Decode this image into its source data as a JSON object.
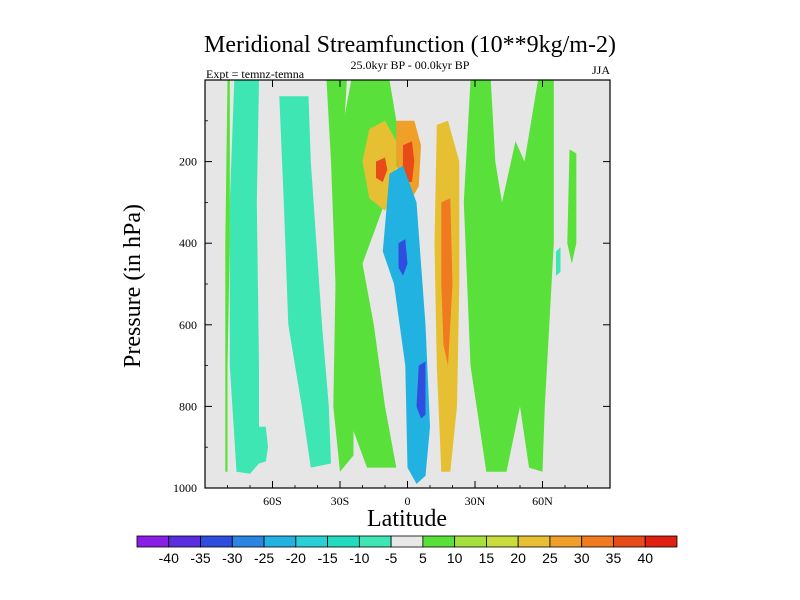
{
  "chart_data": {
    "type": "contour",
    "title": "Meridional Streamfunction (10**9kg/m-2)",
    "subtitle": "25.0kyr BP - 00.0kyr BP",
    "left_note": "Expt = temnz-temna",
    "season": "JJA",
    "xlabel": "Latitude",
    "ylabel": "Pressure (in hPa)",
    "xlim": [
      -90,
      90
    ],
    "ylim": [
      1000,
      0
    ],
    "x_ticks": [
      {
        "value": -60,
        "label": "60S"
      },
      {
        "value": -30,
        "label": "30S"
      },
      {
        "value": 0,
        "label": "0"
      },
      {
        "value": 30,
        "label": "30N"
      },
      {
        "value": 60,
        "label": "60N"
      }
    ],
    "y_ticks": [
      {
        "value": 200,
        "label": "200"
      },
      {
        "value": 400,
        "label": "400"
      },
      {
        "value": 600,
        "label": "600"
      },
      {
        "value": 800,
        "label": "800"
      },
      {
        "value": 1000,
        "label": "1000"
      }
    ],
    "background_color": "#e6e6e6",
    "colorbar": {
      "labels": [
        "-40",
        "-35",
        "-30",
        "-25",
        "-20",
        "-15",
        "-10",
        "-5",
        "5",
        "10",
        "15",
        "20",
        "25",
        "30",
        "35",
        "40"
      ],
      "colors": [
        "#8a1ee6",
        "#5a2ee0",
        "#2f4ee0",
        "#2a86e0",
        "#22b2e2",
        "#29cfd6",
        "#22dcc0",
        "#3ee6b4",
        "#e8e8e8",
        "#5ae03a",
        "#a6e03c",
        "#c8dc3c",
        "#e6c032",
        "#f0a028",
        "#f07a20",
        "#e84a18",
        "#e02010"
      ]
    },
    "regions": [
      {
        "name": "sh-polar-cell",
        "value": -22,
        "points": [
          [
            -73,
            0
          ],
          [
            -70,
            0
          ],
          [
            -69,
            300
          ],
          [
            -70,
            700
          ],
          [
            -70,
            930
          ],
          [
            -72,
            955
          ],
          [
            -75,
            930
          ],
          [
            -76,
            500
          ],
          [
            -75,
            200
          ]
        ]
      },
      {
        "name": "sh-polar-cell-outer",
        "value": -7,
        "points": [
          [
            -77,
            0
          ],
          [
            -66,
            0
          ],
          [
            -67,
            300
          ],
          [
            -66,
            700
          ],
          [
            -66,
            940
          ],
          [
            -70,
            965
          ],
          [
            -76,
            960
          ],
          [
            -79,
            700
          ],
          [
            -79,
            300
          ]
        ]
      },
      {
        "name": "sh-midlat-positive",
        "value": 7,
        "points": [
          [
            -80,
            0
          ],
          [
            -79,
            0
          ],
          [
            -79,
            400
          ],
          [
            -80,
            700
          ],
          [
            -80,
            960
          ],
          [
            -81,
            960
          ],
          [
            -81,
            400
          ]
        ]
      },
      {
        "name": "sh-small-blob",
        "value": -7,
        "points": [
          [
            -66,
            850
          ],
          [
            -63,
            850
          ],
          [
            -62,
            900
          ],
          [
            -63,
            935
          ],
          [
            -66,
            940
          ],
          [
            -67,
            900
          ]
        ]
      },
      {
        "name": "sh-broad-negative",
        "value": -7,
        "points": [
          [
            -57,
            40
          ],
          [
            -44,
            40
          ],
          [
            -43,
            200
          ],
          [
            -38,
            600
          ],
          [
            -35,
            800
          ],
          [
            -34,
            940
          ],
          [
            -43,
            950
          ],
          [
            -47,
            800
          ],
          [
            -53,
            600
          ],
          [
            -55,
            300
          ]
        ]
      },
      {
        "name": "sh-right-positive",
        "value": 7,
        "points": [
          [
            -36,
            0
          ],
          [
            -27,
            0
          ],
          [
            -29,
            200
          ],
          [
            -26,
            400
          ],
          [
            -24,
            700
          ],
          [
            -24,
            920
          ],
          [
            -30,
            960
          ],
          [
            -33,
            800
          ],
          [
            -32,
            500
          ],
          [
            -34,
            200
          ]
        ]
      },
      {
        "name": "tropical-positive-band",
        "value": 7,
        "points": [
          [
            -25,
            0
          ],
          [
            -8,
            0
          ],
          [
            -5,
            100
          ],
          [
            -4,
            200
          ],
          [
            -10,
            300
          ],
          [
            -20,
            450
          ],
          [
            -15,
            600
          ],
          [
            -10,
            800
          ],
          [
            -5,
            950
          ],
          [
            -18,
            950
          ],
          [
            -28,
            800
          ],
          [
            -28,
            400
          ],
          [
            -30,
            150
          ]
        ]
      },
      {
        "name": "upper-high-core-left",
        "value": 22,
        "points": [
          [
            -17,
            120
          ],
          [
            -10,
            100
          ],
          [
            -5,
            150
          ],
          [
            -5,
            280
          ],
          [
            -10,
            320
          ],
          [
            -17,
            290
          ],
          [
            -20,
            200
          ]
        ]
      },
      {
        "name": "upper-high-core-left-peak",
        "value": 37,
        "points": [
          [
            -14,
            200
          ],
          [
            -10,
            190
          ],
          [
            -9,
            220
          ],
          [
            -11,
            250
          ],
          [
            -14,
            240
          ]
        ]
      },
      {
        "name": "upper-high-core-right",
        "value": 27,
        "points": [
          [
            -5,
            100
          ],
          [
            3,
            100
          ],
          [
            6,
            160
          ],
          [
            5,
            260
          ],
          [
            1,
            300
          ],
          [
            -4,
            280
          ],
          [
            -5,
            180
          ]
        ]
      },
      {
        "name": "upper-high-core-right-peak",
        "value": 37,
        "points": [
          [
            -2,
            160
          ],
          [
            2,
            150
          ],
          [
            3,
            200
          ],
          [
            2,
            250
          ],
          [
            -2,
            250
          ]
        ]
      },
      {
        "name": "equatorial-negative",
        "value": -22,
        "points": [
          [
            -8,
            230
          ],
          [
            -2,
            210
          ],
          [
            4,
            300
          ],
          [
            8,
            600
          ],
          [
            10,
            850
          ],
          [
            8,
            970
          ],
          [
            4,
            990
          ],
          [
            0,
            950
          ],
          [
            -1,
            700
          ],
          [
            -6,
            500
          ],
          [
            -11,
            420
          ]
        ]
      },
      {
        "name": "equatorial-negative-core",
        "value": -32,
        "points": [
          [
            -4,
            400
          ],
          [
            -1,
            390
          ],
          [
            0,
            450
          ],
          [
            -2,
            480
          ],
          [
            -4,
            460
          ]
        ]
      },
      {
        "name": "equatorial-negative-lower",
        "value": -32,
        "points": [
          [
            5,
            700
          ],
          [
            8,
            690
          ],
          [
            8,
            820
          ],
          [
            6,
            830
          ],
          [
            4,
            800
          ]
        ]
      },
      {
        "name": "nh-hadley-positive",
        "value": 22,
        "points": [
          [
            13,
            110
          ],
          [
            18,
            100
          ],
          [
            23,
            200
          ],
          [
            23,
            500
          ],
          [
            22,
            800
          ],
          [
            19,
            960
          ],
          [
            15,
            960
          ],
          [
            13,
            700
          ],
          [
            12,
            400
          ]
        ]
      },
      {
        "name": "nh-hadley-core",
        "value": 32,
        "points": [
          [
            15,
            300
          ],
          [
            19,
            290
          ],
          [
            20,
            500
          ],
          [
            18,
            700
          ],
          [
            16,
            650
          ],
          [
            15,
            500
          ]
        ]
      },
      {
        "name": "nh-midlat-positive",
        "value": 7,
        "points": [
          [
            28,
            0
          ],
          [
            37,
            0
          ],
          [
            39,
            200
          ],
          [
            42,
            300
          ],
          [
            48,
            150
          ],
          [
            52,
            200
          ],
          [
            58,
            0
          ],
          [
            65,
            0
          ],
          [
            65,
            400
          ],
          [
            61,
            800
          ],
          [
            60,
            960
          ],
          [
            54,
            950
          ],
          [
            50,
            800
          ],
          [
            44,
            960
          ],
          [
            35,
            960
          ],
          [
            28,
            700
          ],
          [
            25,
            300
          ]
        ]
      },
      {
        "name": "nh-polar-positive",
        "value": 7,
        "points": [
          [
            72,
            170
          ],
          [
            75,
            180
          ],
          [
            75,
            400
          ],
          [
            73,
            450
          ],
          [
            71,
            400
          ]
        ]
      },
      {
        "name": "nh-small-negative",
        "value": -7,
        "points": [
          [
            66,
            420
          ],
          [
            68,
            410
          ],
          [
            68,
            470
          ],
          [
            66,
            480
          ]
        ]
      }
    ]
  }
}
